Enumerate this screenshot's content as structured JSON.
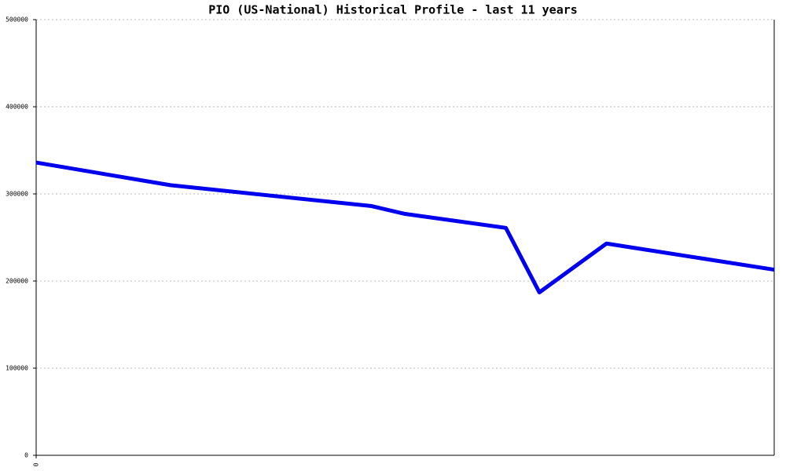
{
  "chart_data": {
    "type": "line",
    "title": "PIO (US-National) Historical Profile - last 11 years",
    "x": [
      0,
      2,
      5,
      5.5,
      7,
      7.5,
      8.5,
      11
    ],
    "series": [
      {
        "color": "#0000ee",
        "values": [
          336000,
          310000,
          286000,
          277000,
          261000,
          187000,
          243000,
          213000
        ]
      }
    ],
    "xlim": [
      0,
      11
    ],
    "xticks": [
      0
    ],
    "ylim": [
      0,
      500000
    ],
    "yticks": [
      0,
      100000,
      200000,
      300000,
      400000,
      500000
    ],
    "grid": true
  }
}
